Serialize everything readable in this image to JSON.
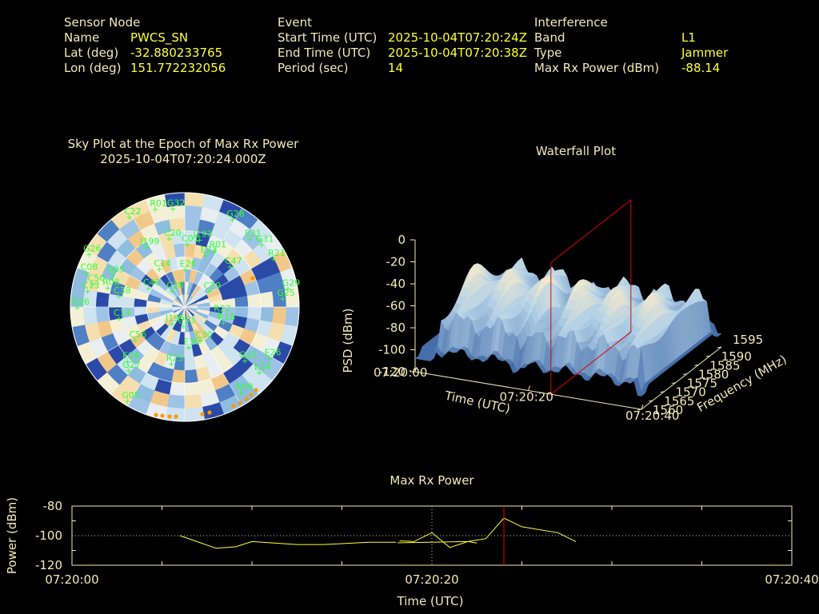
{
  "header": {
    "sensor": {
      "heading": "Sensor Node",
      "rows": [
        {
          "label": "Name",
          "value": "PWCS_SN"
        },
        {
          "label": "Lat (deg)",
          "value": "-32.880233765"
        },
        {
          "label": "Lon (deg)",
          "value": "151.772232056"
        }
      ]
    },
    "event": {
      "heading": "Event",
      "rows": [
        {
          "label": "Start Time (UTC)",
          "value": "2025-10-04T07:20:24Z"
        },
        {
          "label": "End Time (UTC)",
          "value": "2025-10-04T07:20:38Z"
        },
        {
          "label": "Period (sec)",
          "value": "14"
        }
      ]
    },
    "interference": {
      "heading": "Interference",
      "rows": [
        {
          "label": "Band",
          "value": "L1"
        },
        {
          "label": "Type",
          "value": "Jammer"
        },
        {
          "label": "Max Rx Power (dBm)",
          "value": "-88.14"
        }
      ]
    }
  },
  "colors": {
    "label": "#f3e9b8",
    "value": "#ffff33",
    "satellite": "#33ff33",
    "marker": "#e00000",
    "series": "#ffff33",
    "jammer_dot": "#ff9900"
  },
  "chart_data": [
    {
      "type": "other",
      "title": "Sky Plot at the Epoch of Max Rx Power",
      "subtitle": "2025-10-04T07:20:24.000Z",
      "satellites": [
        {
          "id": "R01",
          "az": 345,
          "el": 10
        },
        {
          "id": "G32",
          "az": 355,
          "el": 12
        },
        {
          "id": "C22",
          "az": 330,
          "el": 8
        },
        {
          "id": "G26",
          "az": 300,
          "el": 6
        },
        {
          "id": "G28",
          "az": 30,
          "el": 10
        },
        {
          "id": "E21",
          "az": 45,
          "el": 14
        },
        {
          "id": "G31",
          "az": 52,
          "el": 10
        },
        {
          "id": "R21",
          "az": 62,
          "el": 8
        },
        {
          "id": "G29",
          "az": 80,
          "el": 5
        },
        {
          "id": "J199",
          "az": 330,
          "el": 35
        },
        {
          "id": "C20",
          "az": 350,
          "el": 35
        },
        {
          "id": "C01",
          "az": 5,
          "el": 40
        },
        {
          "id": "J193",
          "az": 15,
          "el": 35
        },
        {
          "id": "R01",
          "az": 30,
          "el": 38
        },
        {
          "id": "E23",
          "az": 25,
          "el": 45
        },
        {
          "id": "C47",
          "az": 50,
          "el": 40
        },
        {
          "id": "C13",
          "az": 280,
          "el": 15
        },
        {
          "id": "C50",
          "az": 285,
          "el": 18
        },
        {
          "id": "C14",
          "az": 330,
          "el": 55
        },
        {
          "id": "C08",
          "az": 290,
          "el": 10
        },
        {
          "id": "G03",
          "az": 295,
          "el": 30
        },
        {
          "id": "R08",
          "az": 285,
          "el": 30
        },
        {
          "id": "C38",
          "az": 280,
          "el": 40
        },
        {
          "id": "E26",
          "az": 5,
          "el": 60
        },
        {
          "id": "C29",
          "az": 60,
          "el": 65
        },
        {
          "id": "C40",
          "az": 300,
          "el": 60
        },
        {
          "id": "C19",
          "az": 260,
          "el": 40
        },
        {
          "id": "C28",
          "az": 330,
          "el": 75
        },
        {
          "id": "R22",
          "az": 100,
          "el": 60
        },
        {
          "id": "R18",
          "az": 110,
          "el": 55
        },
        {
          "id": "J195",
          "az": 210,
          "el": 75
        },
        {
          "id": "G16",
          "az": 270,
          "el": 8
        },
        {
          "id": "C56",
          "az": 235,
          "el": 45
        },
        {
          "id": "C53",
          "az": 175,
          "el": 75
        },
        {
          "id": "C30",
          "az": 150,
          "el": 60
        },
        {
          "id": "E30",
          "az": 170,
          "el": 58
        },
        {
          "id": "E24",
          "az": 225,
          "el": 30
        },
        {
          "id": "G27",
          "az": 220,
          "el": 25
        },
        {
          "id": "R23",
          "az": 190,
          "el": 45
        },
        {
          "id": "G15",
          "az": 130,
          "el": 25
        },
        {
          "id": "E26",
          "az": 120,
          "el": 10
        },
        {
          "id": "E14",
          "az": 130,
          "el": 10
        },
        {
          "id": "R09",
          "az": 145,
          "el": 8
        },
        {
          "id": "G05",
          "az": 210,
          "el": 5
        },
        {
          "id": "G25",
          "az": 85,
          "el": 10
        }
      ]
    },
    {
      "type": "surface",
      "title": "Waterfall Plot",
      "xlabel": "Time (UTC)",
      "ylabel": "Frequency (MHz)",
      "zlabel": "PSD (dBm)",
      "x_ticks": [
        "07:20:00",
        "07:20:20",
        "07:20:40"
      ],
      "y_ticks": [
        "1560",
        "1565",
        "1570",
        "1575",
        "1580",
        "1585",
        "1590",
        "1595"
      ],
      "z_ticks": [
        "0",
        "-20",
        "-40",
        "-60",
        "-80",
        "-100",
        "-120"
      ],
      "xlim": [
        "07:20:00",
        "07:20:40"
      ],
      "ylim": [
        1560,
        1595
      ],
      "zlim": [
        -120,
        0
      ],
      "marker_time": "07:20:24"
    },
    {
      "type": "line",
      "title": "Max Rx Power",
      "xlabel": "Time (UTC)",
      "ylabel": "Power (dBm)",
      "x_ticks": [
        "07:20:00",
        "07:20:20",
        "07:20:40"
      ],
      "y_ticks": [
        "-80",
        "-100",
        "-120"
      ],
      "xlim": [
        0,
        40
      ],
      "ylim": [
        -120,
        -80
      ],
      "grid": true,
      "marker_time": 24,
      "series": [
        {
          "points": [
            [
              6,
              -100
            ],
            [
              8,
              -108.5
            ],
            [
              9.1,
              -107.5
            ],
            [
              10,
              -104
            ],
            [
              12.5,
              -106
            ],
            [
              14,
              -106
            ],
            [
              16.5,
              -104.5
            ],
            [
              18,
              -104.5
            ]
          ]
        },
        {
          "points": [
            [
              18.1,
              -104.8
            ],
            [
              22,
              -104
            ],
            [
              22.5,
              -105
            ]
          ]
        },
        {
          "points": [
            [
              18.2,
              -103.5
            ],
            [
              19,
              -104
            ],
            [
              20,
              -98
            ],
            [
              21,
              -108
            ],
            [
              22,
              -104
            ],
            [
              23,
              -102
            ],
            [
              24,
              -88.1
            ],
            [
              25,
              -94
            ],
            [
              27,
              -98
            ],
            [
              28,
              -104
            ]
          ]
        }
      ]
    }
  ]
}
